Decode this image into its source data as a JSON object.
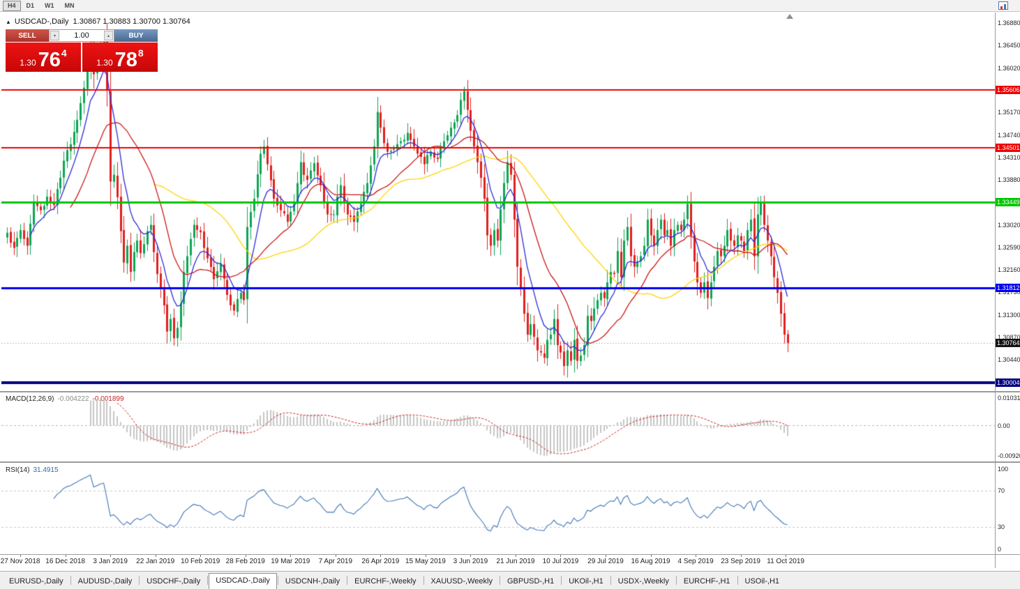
{
  "toolbar": {
    "timeframes": [
      {
        "label": "H4",
        "active": true
      },
      {
        "label": "D1",
        "active": false
      },
      {
        "label": "W1",
        "active": false
      },
      {
        "label": "MN",
        "active": false
      }
    ]
  },
  "chart_header": {
    "collapse_marker": "▲",
    "symbol_title": "USDCAD-,Daily",
    "ohlc_text": "1.30867 1.30883 1.30700 1.30764"
  },
  "one_click": {
    "sell_label": "SELL",
    "buy_label": "BUY",
    "volume": "1.00",
    "spin_down": "▾",
    "spin_up": "▴",
    "sell_price": {
      "small": "1.30",
      "big": "76",
      "sup": "4"
    },
    "buy_price": {
      "small": "1.30",
      "big": "78",
      "sup": "8"
    }
  },
  "ui_colors": {
    "sell_button": "#aa352d",
    "buy_button": "#47698f",
    "price_tile": "#d90b0b",
    "toolbar_bg": "#f2f2f2",
    "tab_bg": "#efefef"
  },
  "price_scale": {
    "labels": [
      "1.36880",
      "1.36450",
      "1.36020",
      "1.35170",
      "1.34740",
      "1.34310",
      "1.33880",
      "1.33020",
      "1.32590",
      "1.32160",
      "1.31730",
      "1.31300",
      "1.30870",
      "1.30440"
    ],
    "current": {
      "value": "1.30764",
      "bg": "#141414"
    },
    "levels": [
      {
        "value": "1.35606",
        "color": "#ee0000",
        "width": 2
      },
      {
        "value": "1.34501",
        "color": "#ee0000",
        "width": 2
      },
      {
        "value": "1.33449",
        "color": "#00c400",
        "width": 3
      },
      {
        "value": "1.31812",
        "color": "#0000ee",
        "width": 3
      },
      {
        "value": "1.30004",
        "color": "#000080",
        "width": 4
      }
    ]
  },
  "indicator_panels": {
    "macd": {
      "title": "MACD(12,26,9)",
      "main_value": "-0.004222",
      "signal_value": "-0.001899",
      "scale_top": "0.010311",
      "scale_zero": "0.00",
      "scale_bottom": "-0.009202"
    },
    "rsi": {
      "title": "RSI(14)",
      "value": "31.4915",
      "scale_labels": [
        "100",
        "70",
        "30",
        "0"
      ],
      "grid_levels": [
        70,
        30
      ]
    }
  },
  "time_scale": [
    "27 Nov 2018",
    "16 Dec 2018",
    "3 Jan 2019",
    "22 Jan 2019",
    "10 Feb 2019",
    "28 Feb 2019",
    "19 Mar 2019",
    "7 Apr 2019",
    "26 Apr 2019",
    "15 May 2019",
    "3 Jun 2019",
    "21 Jun 2019",
    "10 Jul 2019",
    "29 Jul 2019",
    "16 Aug 2019",
    "4 Sep 2019",
    "23 Sep 2019",
    "11 Oct 2019"
  ],
  "tabs": [
    {
      "label": "EURUSD-,Daily",
      "active": false
    },
    {
      "label": "AUDUSD-,Daily",
      "active": false
    },
    {
      "label": "USDCHF-,Daily",
      "active": false
    },
    {
      "label": "USDCAD-,Daily",
      "active": true
    },
    {
      "label": "USDCNH-,Daily",
      "active": false
    },
    {
      "label": "EURCHF-,Weekly",
      "active": false
    },
    {
      "label": "XAUUSD-,Weekly",
      "active": false
    },
    {
      "label": "GBPUSD-,H1",
      "active": false
    },
    {
      "label": "UKOil-,H1",
      "active": false
    },
    {
      "label": "USDX-,Weekly",
      "active": false
    },
    {
      "label": "EURCHF-,H1",
      "active": false
    },
    {
      "label": "USOil-,H1",
      "active": false
    }
  ],
  "chart_data": {
    "type": "candlestick",
    "symbol": "USDCAD",
    "timeframe": "Daily",
    "visible_range": {
      "start": "27 Nov 2018",
      "end": "Oct 2019"
    },
    "ohlc_last": {
      "open": 1.30867,
      "high": 1.30883,
      "low": 1.307,
      "close": 1.30764
    },
    "last_price": 1.30764,
    "price_range": [
      1.29855,
      1.37055
    ],
    "key_levels": [
      1.35606,
      1.34501,
      1.33449,
      1.31812,
      1.30004
    ],
    "candle_count": 235,
    "x_label_first_index": 4,
    "x_labels_every": 13.5,
    "close_anchors": [
      [
        0,
        1.3287
      ],
      [
        2,
        1.3258
      ],
      [
        4,
        1.3292
      ],
      [
        6,
        1.3262
      ],
      [
        8,
        1.3345
      ],
      [
        10,
        1.333
      ],
      [
        12,
        1.3356
      ],
      [
        14,
        1.334
      ],
      [
        16,
        1.3392
      ],
      [
        18,
        1.3445
      ],
      [
        20,
        1.348
      ],
      [
        22,
        1.3535
      ],
      [
        24,
        1.36
      ],
      [
        25,
        1.3645
      ],
      [
        26,
        1.359
      ],
      [
        28,
        1.364
      ],
      [
        29,
        1.3655
      ],
      [
        30,
        1.356
      ],
      [
        31,
        1.3385
      ],
      [
        32,
        1.3398
      ],
      [
        33,
        1.3355
      ],
      [
        34,
        1.329
      ],
      [
        35,
        1.323
      ],
      [
        36,
        1.3262
      ],
      [
        37,
        1.3212
      ],
      [
        38,
        1.325
      ],
      [
        39,
        1.3272
      ],
      [
        40,
        1.3248
      ],
      [
        42,
        1.329
      ],
      [
        43,
        1.3302
      ],
      [
        44,
        1.325
      ],
      [
        45,
        1.3208
      ],
      [
        46,
        1.318
      ],
      [
        47,
        1.3148
      ],
      [
        48,
        1.3098
      ],
      [
        49,
        1.3122
      ],
      [
        50,
        1.3085
      ],
      [
        51,
        1.3105
      ],
      [
        52,
        1.3152
      ],
      [
        53,
        1.3212
      ],
      [
        54,
        1.3242
      ],
      [
        55,
        1.3275
      ],
      [
        56,
        1.3302
      ],
      [
        58,
        1.3288
      ],
      [
        60,
        1.3238
      ],
      [
        62,
        1.3198
      ],
      [
        64,
        1.3228
      ],
      [
        66,
        1.3168
      ],
      [
        68,
        1.3138
      ],
      [
        70,
        1.3172
      ],
      [
        71,
        1.3158
      ],
      [
        72,
        1.3298
      ],
      [
        74,
        1.3352
      ],
      [
        76,
        1.3438
      ],
      [
        77,
        1.3452
      ],
      [
        78,
        1.3418
      ],
      [
        80,
        1.3352
      ],
      [
        82,
        1.333
      ],
      [
        84,
        1.3308
      ],
      [
        86,
        1.3342
      ],
      [
        88,
        1.3422
      ],
      [
        90,
        1.3388
      ],
      [
        92,
        1.342
      ],
      [
        94,
        1.3378
      ],
      [
        96,
        1.3322
      ],
      [
        98,
        1.3322
      ],
      [
        100,
        1.3378
      ],
      [
        102,
        1.3322
      ],
      [
        104,
        1.3308
      ],
      [
        106,
        1.3342
      ],
      [
        108,
        1.3382
      ],
      [
        110,
        1.3452
      ],
      [
        111,
        1.3518
      ],
      [
        112,
        1.3488
      ],
      [
        114,
        1.3442
      ],
      [
        116,
        1.3448
      ],
      [
        118,
        1.3462
      ],
      [
        120,
        1.3478
      ],
      [
        122,
        1.3452
      ],
      [
        124,
        1.3432
      ],
      [
        125,
        1.3418
      ],
      [
        127,
        1.3442
      ],
      [
        129,
        1.3428
      ],
      [
        131,
        1.3462
      ],
      [
        133,
        1.3488
      ],
      [
        135,
        1.3512
      ],
      [
        137,
        1.3558
      ],
      [
        138,
        1.3522
      ],
      [
        139,
        1.3482
      ],
      [
        140,
        1.3452
      ],
      [
        141,
        1.3422
      ],
      [
        142,
        1.3392
      ],
      [
        143,
        1.3352
      ],
      [
        144,
        1.3282
      ],
      [
        145,
        1.3262
      ],
      [
        146,
        1.3292
      ],
      [
        147,
        1.3272
      ],
      [
        148,
        1.3332
      ],
      [
        149,
        1.3382
      ],
      [
        150,
        1.3422
      ],
      [
        151,
        1.3398
      ],
      [
        152,
        1.3312
      ],
      [
        153,
        1.3222
      ],
      [
        154,
        1.3182
      ],
      [
        155,
        1.3132
      ],
      [
        156,
        1.3092
      ],
      [
        157,
        1.3112
      ],
      [
        158,
        1.3088
      ],
      [
        159,
        1.3062
      ],
      [
        160,
        1.3058
      ],
      [
        161,
        1.3048
      ],
      [
        162,
        1.3082
      ],
      [
        163,
        1.3092
      ],
      [
        164,
        1.3122
      ],
      [
        165,
        1.3072
      ],
      [
        166,
        1.3058
      ],
      [
        167,
        1.3032
      ],
      [
        168,
        1.3062
      ],
      [
        169,
        1.3042
      ],
      [
        170,
        1.3082
      ],
      [
        171,
        1.3042
      ],
      [
        172,
        1.3052
      ],
      [
        173,
        1.3072
      ],
      [
        174,
        1.3128
      ],
      [
        175,
        1.3118
      ],
      [
        176,
        1.3142
      ],
      [
        177,
        1.3158
      ],
      [
        178,
        1.3172
      ],
      [
        179,
        1.3162
      ],
      [
        180,
        1.3192
      ],
      [
        181,
        1.3212
      ],
      [
        182,
        1.3208
      ],
      [
        183,
        1.3252
      ],
      [
        184,
        1.3202
      ],
      [
        185,
        1.3272
      ],
      [
        186,
        1.3298
      ],
      [
        187,
        1.3242
      ],
      [
        188,
        1.3222
      ],
      [
        189,
        1.3232
      ],
      [
        190,
        1.3242
      ],
      [
        191,
        1.3262
      ],
      [
        192,
        1.3312
      ],
      [
        193,
        1.3282
      ],
      [
        194,
        1.3262
      ],
      [
        195,
        1.3292
      ],
      [
        196,
        1.3312
      ],
      [
        197,
        1.3282
      ],
      [
        198,
        1.3292
      ],
      [
        199,
        1.3262
      ],
      [
        200,
        1.3292
      ],
      [
        201,
        1.3302
      ],
      [
        202,
        1.3292
      ],
      [
        203,
        1.3312
      ],
      [
        204,
        1.3342
      ],
      [
        205,
        1.3282
      ],
      [
        206,
        1.3232
      ],
      [
        207,
        1.3192
      ],
      [
        208,
        1.3172
      ],
      [
        209,
        1.3192
      ],
      [
        210,
        1.3162
      ],
      [
        211,
        1.3192
      ],
      [
        212,
        1.3222
      ],
      [
        213,
        1.3252
      ],
      [
        214,
        1.3242
      ],
      [
        215,
        1.3262
      ],
      [
        216,
        1.3292
      ],
      [
        217,
        1.3272
      ],
      [
        218,
        1.3262
      ],
      [
        219,
        1.3282
      ],
      [
        220,
        1.3272
      ],
      [
        221,
        1.3252
      ],
      [
        222,
        1.3292
      ],
      [
        223,
        1.3312
      ],
      [
        224,
        1.3242
      ],
      [
        225,
        1.3322
      ],
      [
        226,
        1.3344
      ],
      [
        227,
        1.3302
      ],
      [
        228,
        1.3272
      ],
      [
        229,
        1.3242
      ],
      [
        230,
        1.3202
      ],
      [
        231,
        1.3172
      ],
      [
        232,
        1.3132
      ],
      [
        233,
        1.3092
      ],
      [
        234,
        1.30764
      ]
    ],
    "colors": {
      "bull": "#0da553",
      "bear": "#e01f1f",
      "bid_line": "#bcbcbc",
      "ma_fast": "#2a2ad8",
      "ma_mid": "#cc1616",
      "ma_slow": "#ffd400",
      "macd_hist": "#c6c6c6",
      "macd_signal": "#cc2222",
      "rsi_line": "#3f74b8",
      "rsi_grid": "#c8c8c8"
    },
    "indicators": {
      "moving_averages": [
        {
          "type": "ema",
          "period": 8,
          "color_key": "ma_fast"
        },
        {
          "type": "sma",
          "period": 20,
          "color_key": "ma_mid"
        },
        {
          "type": "sma",
          "period": 45,
          "color_key": "ma_slow"
        }
      ],
      "macd": {
        "fast": 12,
        "slow": 26,
        "signal": 9,
        "last_main": -0.004222,
        "last_signal": -0.001899
      },
      "rsi": {
        "period": 14,
        "last": 31.4915
      }
    }
  }
}
